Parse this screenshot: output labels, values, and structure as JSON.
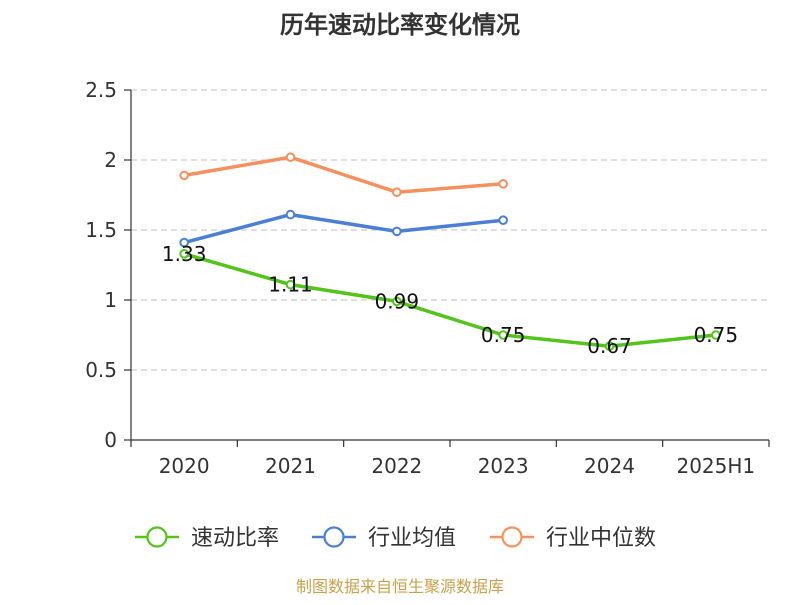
{
  "chart_data": {
    "type": "line",
    "title": "历年速动比率变化情况",
    "categories": [
      "2020",
      "2021",
      "2022",
      "2023",
      "2024",
      "2025H1"
    ],
    "ylim": [
      0,
      2.5
    ],
    "yticks": [
      "0",
      "0.5",
      "1",
      "1.5",
      "2",
      "2.5"
    ],
    "grid": true,
    "legend_position": "bottom",
    "series": [
      {
        "name": "速动比率",
        "color": "#52c41a",
        "values": [
          1.33,
          1.11,
          0.99,
          0.75,
          0.67,
          0.75
        ],
        "labels": [
          "1.33",
          "1.11",
          "0.99",
          "0.75",
          "0.67",
          "0.75"
        ]
      },
      {
        "name": "行业均值",
        "color": "#4a7fd6",
        "values": [
          1.41,
          1.61,
          1.49,
          1.57,
          null,
          null
        ]
      },
      {
        "name": "行业中位数",
        "color": "#f4915e",
        "values": [
          1.89,
          2.02,
          1.77,
          1.83,
          null,
          null
        ]
      }
    ],
    "source": "制图数据来自恒生聚源数据库"
  }
}
